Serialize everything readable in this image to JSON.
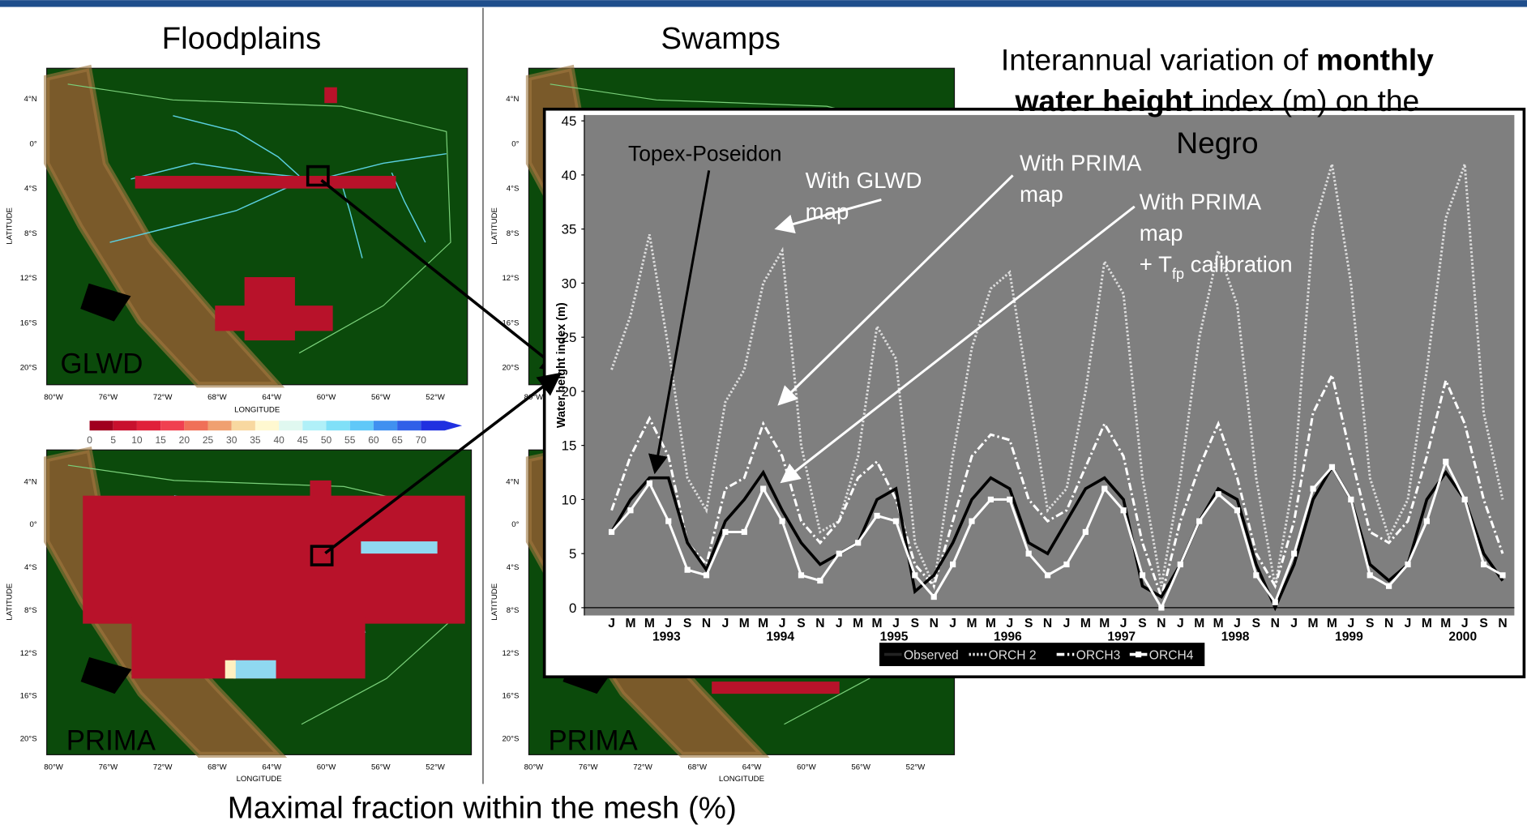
{
  "header": {
    "left_title": "Floodplains",
    "middle_title": "Swamps",
    "title_line1": [
      "Interannual variation of ",
      "monthly"
    ],
    "title_line2": [
      "water height",
      " index (m) on the"
    ],
    "title_line3": "Negro",
    "footer": "Maximal fraction within the mesh (%)"
  },
  "maps": [
    {
      "label": "GLWD",
      "lat_labels": [
        "4°N",
        "0°",
        "4°S",
        "8°S",
        "12°S",
        "16°S",
        "20°S"
      ],
      "lon_labels": [
        "80°W",
        "76°W",
        "72°W",
        "68°W",
        "64°W",
        "60°W",
        "56°W",
        "52°W"
      ],
      "lat_axis": "LATITUDE",
      "lon_axis": "LONGITUDE"
    },
    {
      "lat_labels": [
        "4°N",
        "0°",
        "4°S",
        "8°S",
        "12°S",
        "16°S",
        "20°S"
      ],
      "lon_labels": [
        "80°W"
      ],
      "lat_axis": "LATITUDE"
    },
    {
      "label": "PRIMA",
      "lat_labels": [
        "4°N",
        "0°",
        "4°S",
        "8°S",
        "12°S",
        "16°S",
        "20°S"
      ],
      "lon_labels": [
        "80°W",
        "76°W",
        "72°W",
        "68°W",
        "64°W",
        "60°W",
        "56°W",
        "52°W"
      ],
      "lat_axis": "LATITUDE",
      "lon_axis": "LONGITUDE"
    },
    {
      "label": "PRIMA",
      "lat_labels": [
        "4°N",
        "0°",
        "4°S",
        "8°S",
        "12°S",
        "16°S",
        "20°S"
      ],
      "lon_labels": [
        "80°W",
        "76°W",
        "72°W",
        "68°W",
        "64°W",
        "60°W",
        "56°W",
        "52°W"
      ],
      "lat_axis": "LATITUDE",
      "lon_axis": "LONGITUDE"
    }
  ],
  "colorbar": {
    "labels": [
      0,
      5,
      10,
      15,
      20,
      25,
      30,
      35,
      40,
      45,
      50,
      55,
      60,
      65,
      70
    ]
  },
  "chart_data": {
    "type": "line",
    "y_label": "Water height index (m)",
    "categories": [
      "J",
      "M",
      "M",
      "J",
      "S",
      "N",
      "J",
      "M",
      "M",
      "J",
      "S",
      "N",
      "J",
      "M",
      "M",
      "J",
      "S",
      "N",
      "J",
      "M",
      "M",
      "J",
      "S",
      "N",
      "J",
      "M",
      "M",
      "J",
      "S",
      "N",
      "J",
      "M",
      "M",
      "J",
      "S",
      "N",
      "J",
      "M",
      "M",
      "J",
      "S",
      "N",
      "J",
      "M",
      "M",
      "J",
      "S",
      "N"
    ],
    "years": [
      "1993",
      "1994",
      "1995",
      "1996",
      "1997",
      "1998",
      "1999",
      "2000"
    ],
    "ylim": [
      0,
      45
    ],
    "yticks": [
      0,
      5,
      10,
      15,
      20,
      25,
      30,
      35,
      40,
      45
    ],
    "grid": false,
    "series": [
      {
        "name": "Observed",
        "color": "#000000",
        "dash": "none",
        "values": [
          7,
          10,
          12,
          12,
          6,
          3.5,
          8,
          10,
          12.5,
          9,
          6,
          4,
          5,
          6,
          10,
          11,
          1.5,
          3,
          6,
          10,
          12,
          11,
          6,
          5,
          8,
          11,
          12,
          10,
          2,
          1,
          4,
          8,
          11,
          10,
          4,
          0,
          4,
          10,
          13,
          10,
          4,
          2.5,
          4,
          10,
          12.5,
          10,
          5,
          2.5
        ]
      },
      {
        "name": "ORCH 2",
        "color": "#dddddd",
        "dash": "2,2",
        "values": [
          22,
          27,
          34.5,
          24,
          12,
          9,
          19,
          22,
          30,
          33,
          15,
          7,
          8,
          14,
          26,
          23,
          6,
          2,
          14,
          24,
          29.5,
          31,
          20,
          9,
          11,
          20,
          32,
          29,
          12,
          2,
          12,
          25,
          33,
          28,
          12,
          2,
          12,
          35,
          41,
          30,
          12,
          6.5,
          10,
          22,
          36,
          41,
          18,
          10
        ]
      },
      {
        "name": "ORCH3",
        "color": "#ffffff",
        "dash": "8,3,2,3",
        "values": [
          9,
          14,
          17.5,
          14,
          6,
          4,
          11,
          12,
          17,
          14,
          8,
          6,
          8,
          12,
          13.5,
          10,
          4,
          2,
          8,
          14,
          16,
          15.5,
          10,
          8,
          9,
          13,
          17,
          14,
          6,
          1,
          8,
          13,
          17,
          12,
          5,
          2,
          8,
          18,
          21.5,
          14,
          7,
          6,
          8,
          14,
          21,
          17,
          10,
          5
        ]
      },
      {
        "name": "ORCH4",
        "color": "#ffffff",
        "dash": "none",
        "marker": "square",
        "values": [
          7,
          9,
          11.5,
          8,
          3.5,
          3,
          7,
          7,
          11,
          8,
          3,
          2.5,
          5,
          6,
          8.5,
          8,
          3,
          1,
          4,
          8,
          10,
          10,
          5,
          3,
          4,
          7,
          11,
          9,
          3,
          0,
          4,
          8,
          10.5,
          9,
          3,
          0.5,
          5,
          11,
          13,
          10,
          3,
          2,
          4,
          8,
          13.5,
          10,
          4,
          3
        ]
      }
    ],
    "annotations": {
      "topex": "Topex-Poseidon",
      "glwd": [
        "With GLWD",
        "map"
      ],
      "prima": [
        "With PRIMA",
        "map"
      ],
      "prima_tfp": [
        "With PRIMA",
        "map"
      ],
      "tfp_line": {
        "text": "+ T",
        "sub": "fp",
        "rest": " calibration"
      }
    }
  }
}
